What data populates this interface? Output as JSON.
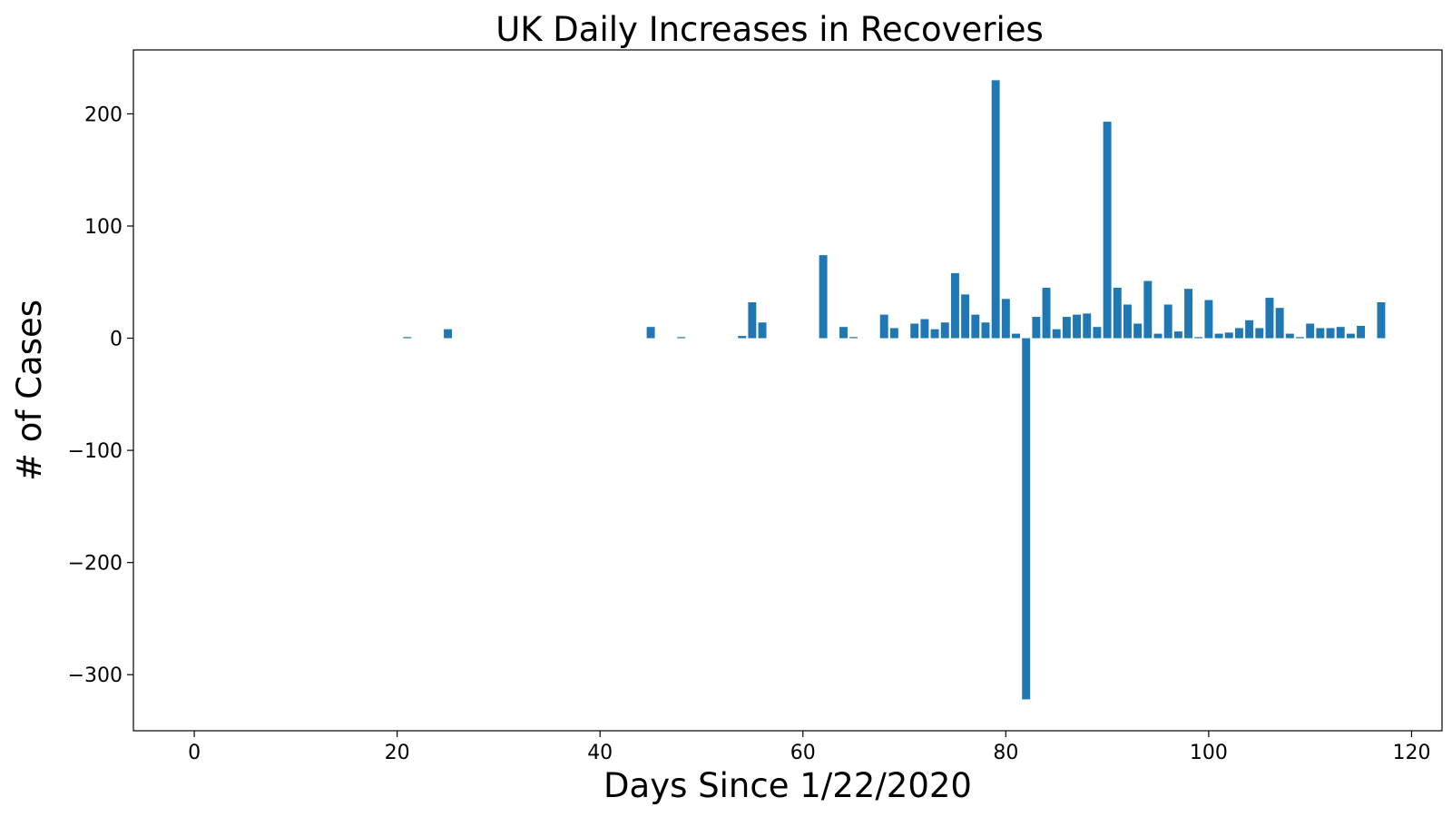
{
  "chart_data": {
    "type": "bar",
    "title": "UK Daily Increases in Recoveries",
    "xlabel": "Days Since 1/22/2020",
    "ylabel": "# of Cases",
    "xlim": [
      -6,
      123
    ],
    "ylim": [
      -350,
      257
    ],
    "x_ticks": [
      0,
      20,
      40,
      60,
      80,
      100,
      120
    ],
    "y_ticks": [
      -300,
      -200,
      -100,
      0,
      100,
      200
    ],
    "y_tick_labels": [
      "−300",
      "−200",
      "−100",
      "0",
      "100",
      "200"
    ],
    "bar_color": "#1f77b4",
    "grid": false,
    "legend": "none",
    "x": [
      21,
      25,
      45,
      48,
      54,
      55,
      56,
      62,
      64,
      65,
      68,
      69,
      71,
      72,
      73,
      74,
      75,
      76,
      77,
      78,
      79,
      80,
      81,
      82,
      83,
      84,
      85,
      86,
      87,
      88,
      89,
      90,
      91,
      92,
      93,
      94,
      95,
      96,
      97,
      98,
      99,
      100,
      101,
      102,
      103,
      104,
      105,
      106,
      107,
      108,
      109,
      110,
      111,
      112,
      113,
      114,
      115,
      117
    ],
    "values": [
      1,
      8,
      10,
      1,
      2,
      32,
      14,
      74,
      10,
      1,
      21,
      9,
      13,
      17,
      8,
      14,
      58,
      39,
      21,
      14,
      230,
      35,
      4,
      -322,
      19,
      45,
      8,
      19,
      21,
      22,
      10,
      193,
      45,
      30,
      13,
      51,
      4,
      30,
      6,
      44,
      1,
      34,
      4,
      5,
      9,
      16,
      9,
      36,
      27,
      4,
      1,
      13,
      9,
      9,
      10,
      4,
      11,
      32
    ]
  }
}
